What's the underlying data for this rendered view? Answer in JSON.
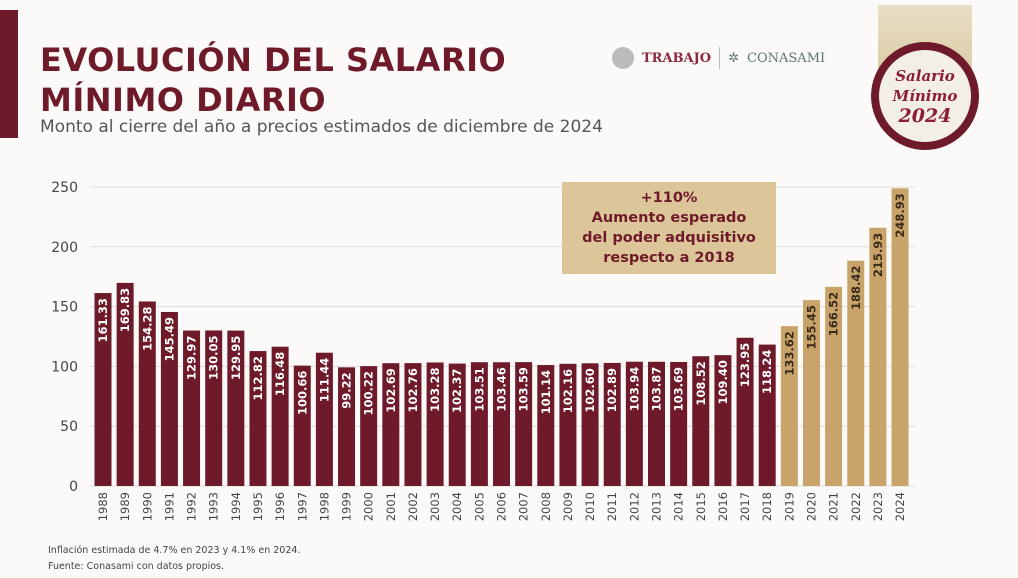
{
  "header": {
    "title_line1": "EVOLUCIÓN DEL SALARIO",
    "title_line2": "MÍNIMO DIARIO",
    "subtitle": "Monto al cierre del año a precios estimados de diciembre de 2024"
  },
  "logos": {
    "trabajo": "TRABAJO",
    "conasami": "CONASAMI",
    "badge_line1": "Salario",
    "badge_line2": "Mínimo",
    "badge_line3": "2024"
  },
  "callout": {
    "line1": "+110%",
    "line2": "Aumento esperado",
    "line3": "del poder adquisitivo",
    "line4": "respecto a 2018"
  },
  "footnotes": {
    "inflation": "Inflación estimada de 4.7% en 2023 y 4.1% en 2024.",
    "source": "Fuente: Conasami con datos propios."
  },
  "colors": {
    "historic": "#6e1a2b",
    "recent": "#c9a46a",
    "grid": "#dddddd"
  },
  "chart_data": {
    "type": "bar",
    "ylim": [
      0,
      250
    ],
    "yticks": [
      0,
      50,
      100,
      150,
      200,
      250
    ],
    "grid": true,
    "categories": [
      "1988",
      "1989",
      "1990",
      "1991",
      "1992",
      "1993",
      "1994",
      "1995",
      "1996",
      "1997",
      "1998",
      "1999",
      "2000",
      "2001",
      "2002",
      "2003",
      "2004",
      "2005",
      "2006",
      "2007",
      "2008",
      "2009",
      "2010",
      "2011",
      "2012",
      "2013",
      "2014",
      "2015",
      "2016",
      "2017",
      "2018",
      "2019",
      "2020",
      "2021",
      "2022",
      "2023",
      "2024"
    ],
    "values": [
      161.33,
      169.83,
      154.28,
      145.49,
      129.97,
      130.05,
      129.95,
      112.82,
      116.48,
      100.66,
      111.44,
      99.22,
      100.22,
      102.69,
      102.76,
      103.28,
      102.37,
      103.51,
      103.46,
      103.59,
      101.14,
      102.16,
      102.6,
      102.89,
      103.94,
      103.87,
      103.69,
      108.52,
      109.4,
      123.95,
      118.24,
      133.62,
      155.45,
      166.52,
      188.42,
      215.93,
      248.93
    ],
    "labels": [
      "161.33",
      "169.83",
      "154.28",
      "145.49",
      "129.97",
      "130.05",
      "129.95",
      "112.82",
      "116.48",
      "100.66",
      "111.44",
      "99.22",
      "100.22",
      "102.69",
      "102.76",
      "103.28",
      "102.37",
      "103.51",
      "103.46",
      "103.59",
      "101.14",
      "102.16",
      "102.60",
      "102.89",
      "103.94",
      "103.87",
      "103.69",
      "108.52",
      "109.40",
      "123.95",
      "118.24",
      "133.62",
      "155.45",
      "166.52",
      "188.42",
      "215.93",
      "248.93"
    ],
    "highlight_from": "2019"
  }
}
